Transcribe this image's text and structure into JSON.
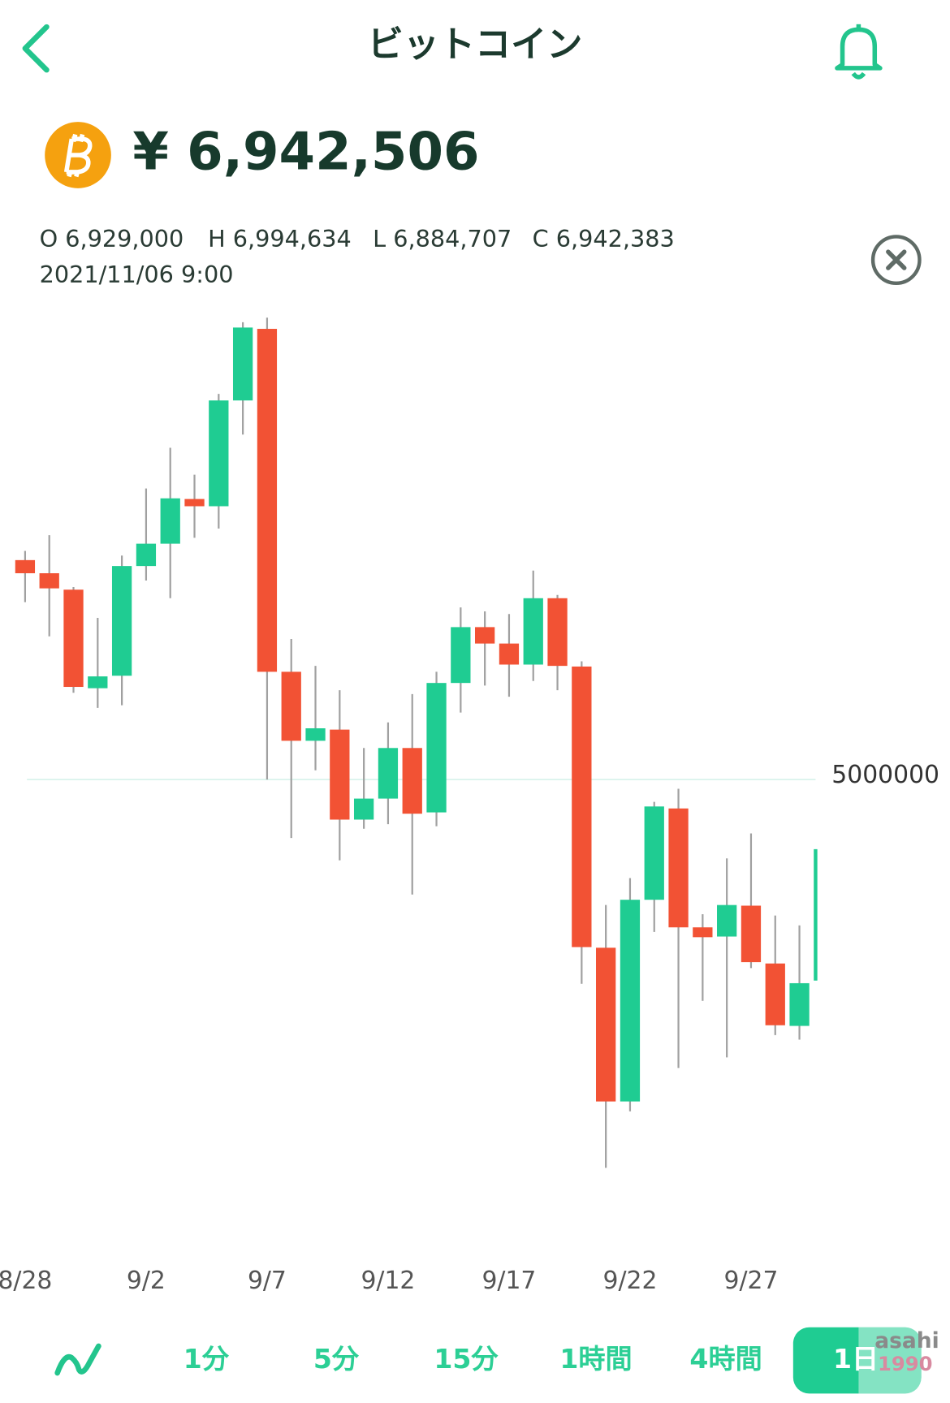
{
  "header": {
    "title": "ビットコイン"
  },
  "price": "¥ 6,942,506",
  "ohlc_line": [
    "O 6,929,000",
    "H 6,994,634",
    "L 6,884,707",
    "C 6,942,383"
  ],
  "timestamp": "2021/11/06 9:00",
  "chart_data": {
    "type": "candlestick",
    "categories": [
      "8/28",
      null,
      null,
      null,
      null,
      "9/2",
      null,
      null,
      null,
      null,
      "9/7",
      null,
      null,
      null,
      null,
      "9/12",
      null,
      null,
      null,
      null,
      "9/17",
      null,
      null,
      null,
      null,
      "9/22",
      null,
      null,
      null,
      null,
      "9/27",
      null,
      null,
      null
    ],
    "open": [
      5334000,
      5314000,
      5289000,
      5139000,
      5158000,
      5325000,
      5359000,
      5427000,
      5416000,
      5577000,
      5686000,
      5164000,
      5059000,
      5076000,
      4939000,
      4971000,
      5048000,
      4950000,
      5147000,
      5232000,
      5207000,
      5175000,
      5276000,
      5172000,
      4744000,
      4510000,
      4817000,
      4956000,
      4775000,
      4761000,
      4808000,
      4720000,
      4625000,
      4694000
    ],
    "high": [
      5348000,
      5372000,
      5293000,
      5246000,
      5341000,
      5443000,
      5505000,
      5464000,
      5587000,
      5696000,
      5703000,
      5214000,
      5173000,
      5136000,
      5048000,
      5087000,
      5130000,
      5164000,
      5262000,
      5256000,
      5252000,
      5318000,
      5281000,
      5180000,
      4809000,
      4850000,
      4966000,
      4986000,
      4795000,
      4880000,
      4918000,
      4793000,
      4778000,
      4894000
    ],
    "low": [
      5270000,
      5218000,
      5132000,
      5109000,
      5113000,
      5303000,
      5276000,
      5368000,
      5382000,
      5525000,
      5000000,
      4911000,
      5014000,
      4877000,
      4925000,
      4932000,
      4825000,
      4929000,
      5102000,
      5143000,
      5126000,
      5150000,
      5136000,
      4689000,
      4409000,
      4495000,
      4768000,
      4561000,
      4663000,
      4577000,
      4713000,
      4611000,
      4604000,
      4694000
    ],
    "close": [
      5314000,
      5291000,
      5141000,
      5157000,
      5325000,
      5359000,
      5428000,
      5416000,
      5577000,
      5688000,
      5164000,
      5059000,
      5078000,
      4939000,
      4971000,
      5048000,
      4948000,
      5147000,
      5232000,
      5207000,
      5175000,
      5276000,
      5173000,
      4745000,
      4510000,
      4817000,
      4959000,
      4775000,
      4760000,
      4809000,
      4722000,
      4626000,
      4690000,
      4894000
    ],
    "up_color": "#1fcc92",
    "down_color": "#f25234",
    "wick_color": "#a0a0a0",
    "ylim": [
      4300000,
      5720000
    ],
    "yticks": [
      5000000
    ],
    "grid": true
  },
  "tabs": [
    "1分",
    "5分",
    "15分",
    "1時間",
    "4時間",
    "1日"
  ],
  "selected_tab": 5,
  "watermark": [
    "asahi",
    "1990"
  ]
}
